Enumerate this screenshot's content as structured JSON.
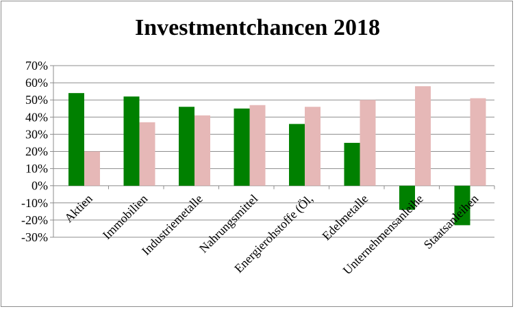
{
  "chart_data": {
    "type": "bar",
    "title": "Investmentchancen 2018",
    "xlabel": "",
    "ylabel": "",
    "categories": [
      "Aktien",
      "Immobilien",
      "Industriemetalle",
      "Nahrungsmittel",
      "Energierohstoffe (Öl,",
      "Edelmetalle",
      "Unternehmensanleihe",
      "Staatsanleihen"
    ],
    "series": [
      {
        "values": [
          54,
          52,
          46,
          45,
          36,
          25,
          -14,
          -23
        ],
        "color": "#008000"
      },
      {
        "values": [
          20,
          37,
          41,
          47,
          46,
          50,
          58,
          51
        ],
        "color": "#e6b8b7"
      }
    ],
    "ylim": [
      -30,
      70
    ],
    "yticks": [
      "70%",
      "60%",
      "50%",
      "40%",
      "30%",
      "20%",
      "10%",
      "0%",
      "-10%",
      "-20%",
      "-30%"
    ],
    "grid": true,
    "legend": "none"
  }
}
